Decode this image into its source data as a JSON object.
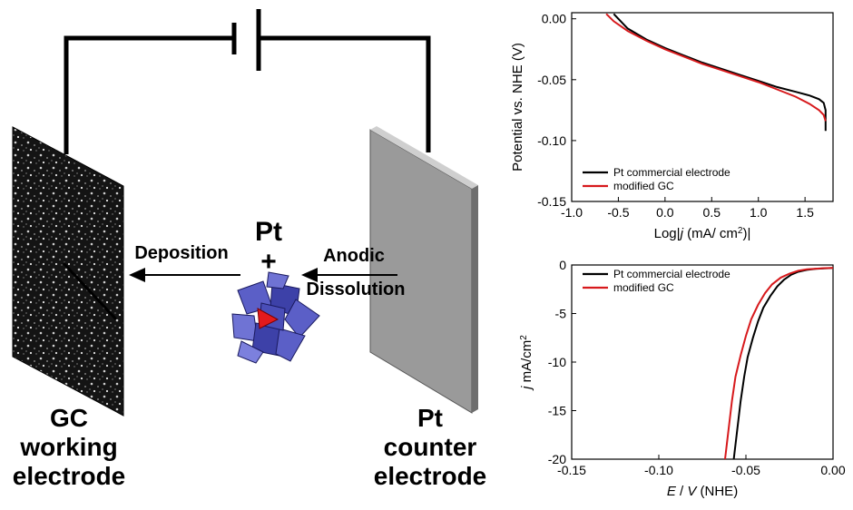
{
  "schematic": {
    "left_electrode": [
      "GC",
      "working",
      "electrode"
    ],
    "right_electrode": [
      "Pt",
      "counter",
      "electrode"
    ],
    "deposition_label": "Deposition",
    "dissolution_label": [
      "Anodic",
      "Dissolution"
    ],
    "center_top": "Pt",
    "center_plus": "+"
  },
  "colors": {
    "black_series": "#000000",
    "red_series": "#d7191c",
    "electrode_gray": "#9a9a9a"
  },
  "chart_data": [
    {
      "type": "line",
      "title": "",
      "xlabel_parts": [
        "Log|",
        "j",
        " (mA/ cm",
        "2",
        ")|"
      ],
      "ylabel": "Potential vs. NHE (V)",
      "xlim": [
        -1.0,
        1.8
      ],
      "ylim": [
        -0.15,
        0.005
      ],
      "xticks": [
        -1.0,
        -0.5,
        0.0,
        0.5,
        1.0,
        1.5
      ],
      "xtick_labels": [
        "-1.0",
        "-0.5",
        "0.0",
        "0.5",
        "1.0",
        "1.5"
      ],
      "yticks": [
        0.0,
        -0.05,
        -0.1,
        -0.15
      ],
      "ytick_labels": [
        "0.00",
        "-0.05",
        "-0.10",
        "-0.15"
      ],
      "legend_position": "bottom-left",
      "series": [
        {
          "name": "Pt commercial  electrode",
          "color": "#000000",
          "x": [
            -0.55,
            -0.5,
            -0.4,
            -0.2,
            0.0,
            0.2,
            0.4,
            0.6,
            0.8,
            1.0,
            1.2,
            1.4,
            1.55,
            1.65,
            1.7,
            1.72,
            1.72
          ],
          "y": [
            0.004,
            0.0,
            -0.008,
            -0.017,
            -0.024,
            -0.03,
            -0.036,
            -0.041,
            -0.046,
            -0.051,
            -0.056,
            -0.06,
            -0.063,
            -0.066,
            -0.069,
            -0.075,
            -0.092
          ]
        },
        {
          "name": "modified GC",
          "color": "#d7191c",
          "x": [
            -0.63,
            -0.55,
            -0.4,
            -0.2,
            0.0,
            0.2,
            0.4,
            0.6,
            0.8,
            1.0,
            1.2,
            1.4,
            1.55,
            1.65,
            1.7,
            1.72
          ],
          "y": [
            0.004,
            -0.002,
            -0.01,
            -0.018,
            -0.025,
            -0.031,
            -0.037,
            -0.042,
            -0.047,
            -0.052,
            -0.058,
            -0.064,
            -0.07,
            -0.075,
            -0.079,
            -0.084
          ]
        }
      ]
    },
    {
      "type": "line",
      "title": "",
      "xlabel_parts": [
        "E",
        " / ",
        "V",
        " (NHE)"
      ],
      "ylabel_parts": [
        "j",
        " mA/cm",
        "2"
      ],
      "xlim": [
        -0.15,
        0.0
      ],
      "ylim": [
        -20,
        0
      ],
      "xticks": [
        -0.15,
        -0.1,
        -0.05,
        0.0
      ],
      "xtick_labels": [
        "-0.15",
        "-0.10",
        "-0.05",
        "0.00"
      ],
      "yticks": [
        0,
        -5,
        -10,
        -15,
        -20
      ],
      "ytick_labels": [
        "0",
        "-5",
        "-10",
        "-15",
        "-20"
      ],
      "legend_position": "top-left",
      "series": [
        {
          "name": "Pt commercial electrode",
          "color": "#000000",
          "x": [
            -0.057,
            -0.055,
            -0.053,
            -0.051,
            -0.049,
            -0.046,
            -0.043,
            -0.04,
            -0.036,
            -0.032,
            -0.028,
            -0.024,
            -0.02,
            -0.015,
            -0.01,
            -0.005,
            0.0
          ],
          "y": [
            -20,
            -17,
            -14,
            -11.5,
            -9.5,
            -7.5,
            -5.8,
            -4.4,
            -3.2,
            -2.2,
            -1.5,
            -1.0,
            -0.7,
            -0.5,
            -0.4,
            -0.35,
            -0.3
          ]
        },
        {
          "name": "modified GC",
          "color": "#d7191c",
          "x": [
            -0.062,
            -0.06,
            -0.058,
            -0.056,
            -0.053,
            -0.05,
            -0.047,
            -0.043,
            -0.039,
            -0.035,
            -0.03,
            -0.025,
            -0.02,
            -0.015,
            -0.01,
            -0.005,
            0.0
          ],
          "y": [
            -20,
            -17,
            -14,
            -11.5,
            -9.3,
            -7.3,
            -5.6,
            -4.1,
            -2.9,
            -2.0,
            -1.3,
            -0.9,
            -0.6,
            -0.45,
            -0.38,
            -0.33,
            -0.3
          ]
        }
      ]
    }
  ]
}
